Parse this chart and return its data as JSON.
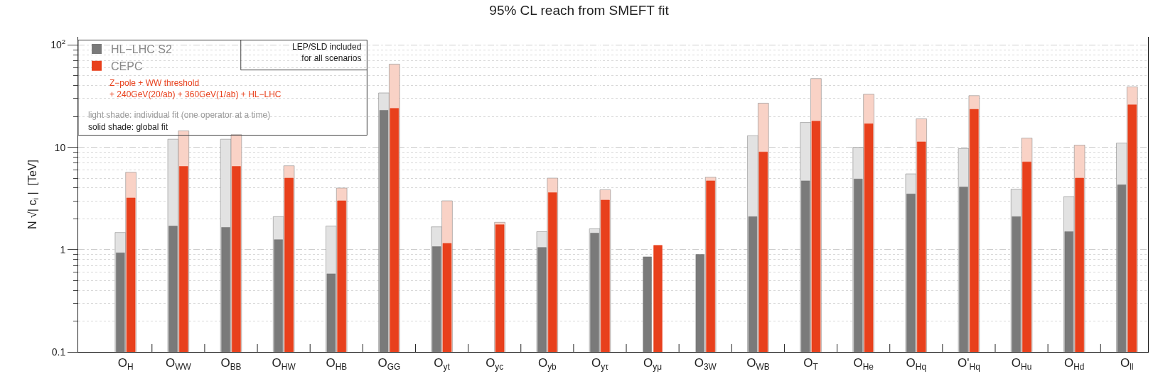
{
  "chart_data": {
    "type": "bar",
    "title": "95% CL reach from SMEFT fit",
    "ylabel": "N √| c$_{i}$ |  [TeV]",
    "categories": [
      "O$_{H}$",
      "O$_{WW}$",
      "O$_{BB}$",
      "O$_{HW}$",
      "O$_{HB}$",
      "O$_{GG}$",
      "O$_{yt}$",
      "O$_{yc}$",
      "O$_{yb}$",
      "O$_{yτ}$",
      "O$_{yμ}$",
      "O$_{3W}$",
      "O$_{WB}$",
      "O$_{T}$",
      "O$_{He}$",
      "O$_{Hq}$",
      "O'$_{Hq}$",
      "O$_{Hu}$",
      "O$_{Hd}$",
      "O$_{ll}$"
    ],
    "series": [
      {
        "color": "#e2e2e2",
        "values": [
          1.47,
          12,
          12,
          2.1,
          1.7,
          34,
          1.67,
          null,
          1.5,
          1.6,
          null,
          null,
          13,
          17.5,
          10,
          5.5,
          9.7,
          3.9,
          3.3,
          11
        ]
      },
      {
        "name": "HL−LHC S2",
        "color": "#7a7a7a",
        "values": [
          0.93,
          1.7,
          1.65,
          1.25,
          0.58,
          23,
          1.07,
          null,
          1.05,
          1.45,
          0.85,
          0.9,
          2.1,
          4.7,
          4.9,
          3.5,
          4.1,
          2.1,
          1.5,
          4.3
        ]
      },
      {
        "color": "#f9d2c6",
        "values": [
          5.7,
          14.5,
          13.3,
          6.6,
          4.0,
          65,
          3.0,
          1.85,
          5.0,
          3.85,
          null,
          5.1,
          27,
          47,
          33,
          19,
          32,
          12.3,
          10.5,
          39
        ]
      },
      {
        "name": "CEPC",
        "color": "#e8401c",
        "values": [
          3.2,
          6.5,
          6.5,
          5.0,
          3.0,
          24,
          1.15,
          1.75,
          3.6,
          3.05,
          1.1,
          4.7,
          9,
          18,
          17,
          11.3,
          23.5,
          7.2,
          5.0,
          26
        ]
      }
    ],
    "log": true,
    "ylim": [
      0.1,
      120
    ],
    "yticks": [
      0.1,
      1,
      10,
      {
        "value": 100,
        "label": "10$^{2}$"
      }
    ],
    "grid": true,
    "legend": "top left",
    "annotations": [
      "LEP/SLD included\nfor all scenarios",
      "Z−pole + WW threshold\n+ 240GeV(20/ab) + 360GeV(1/ab) + HL−LHC",
      "light shade: individual fit (one operator at a time)",
      "solid shade: global fit"
    ]
  }
}
